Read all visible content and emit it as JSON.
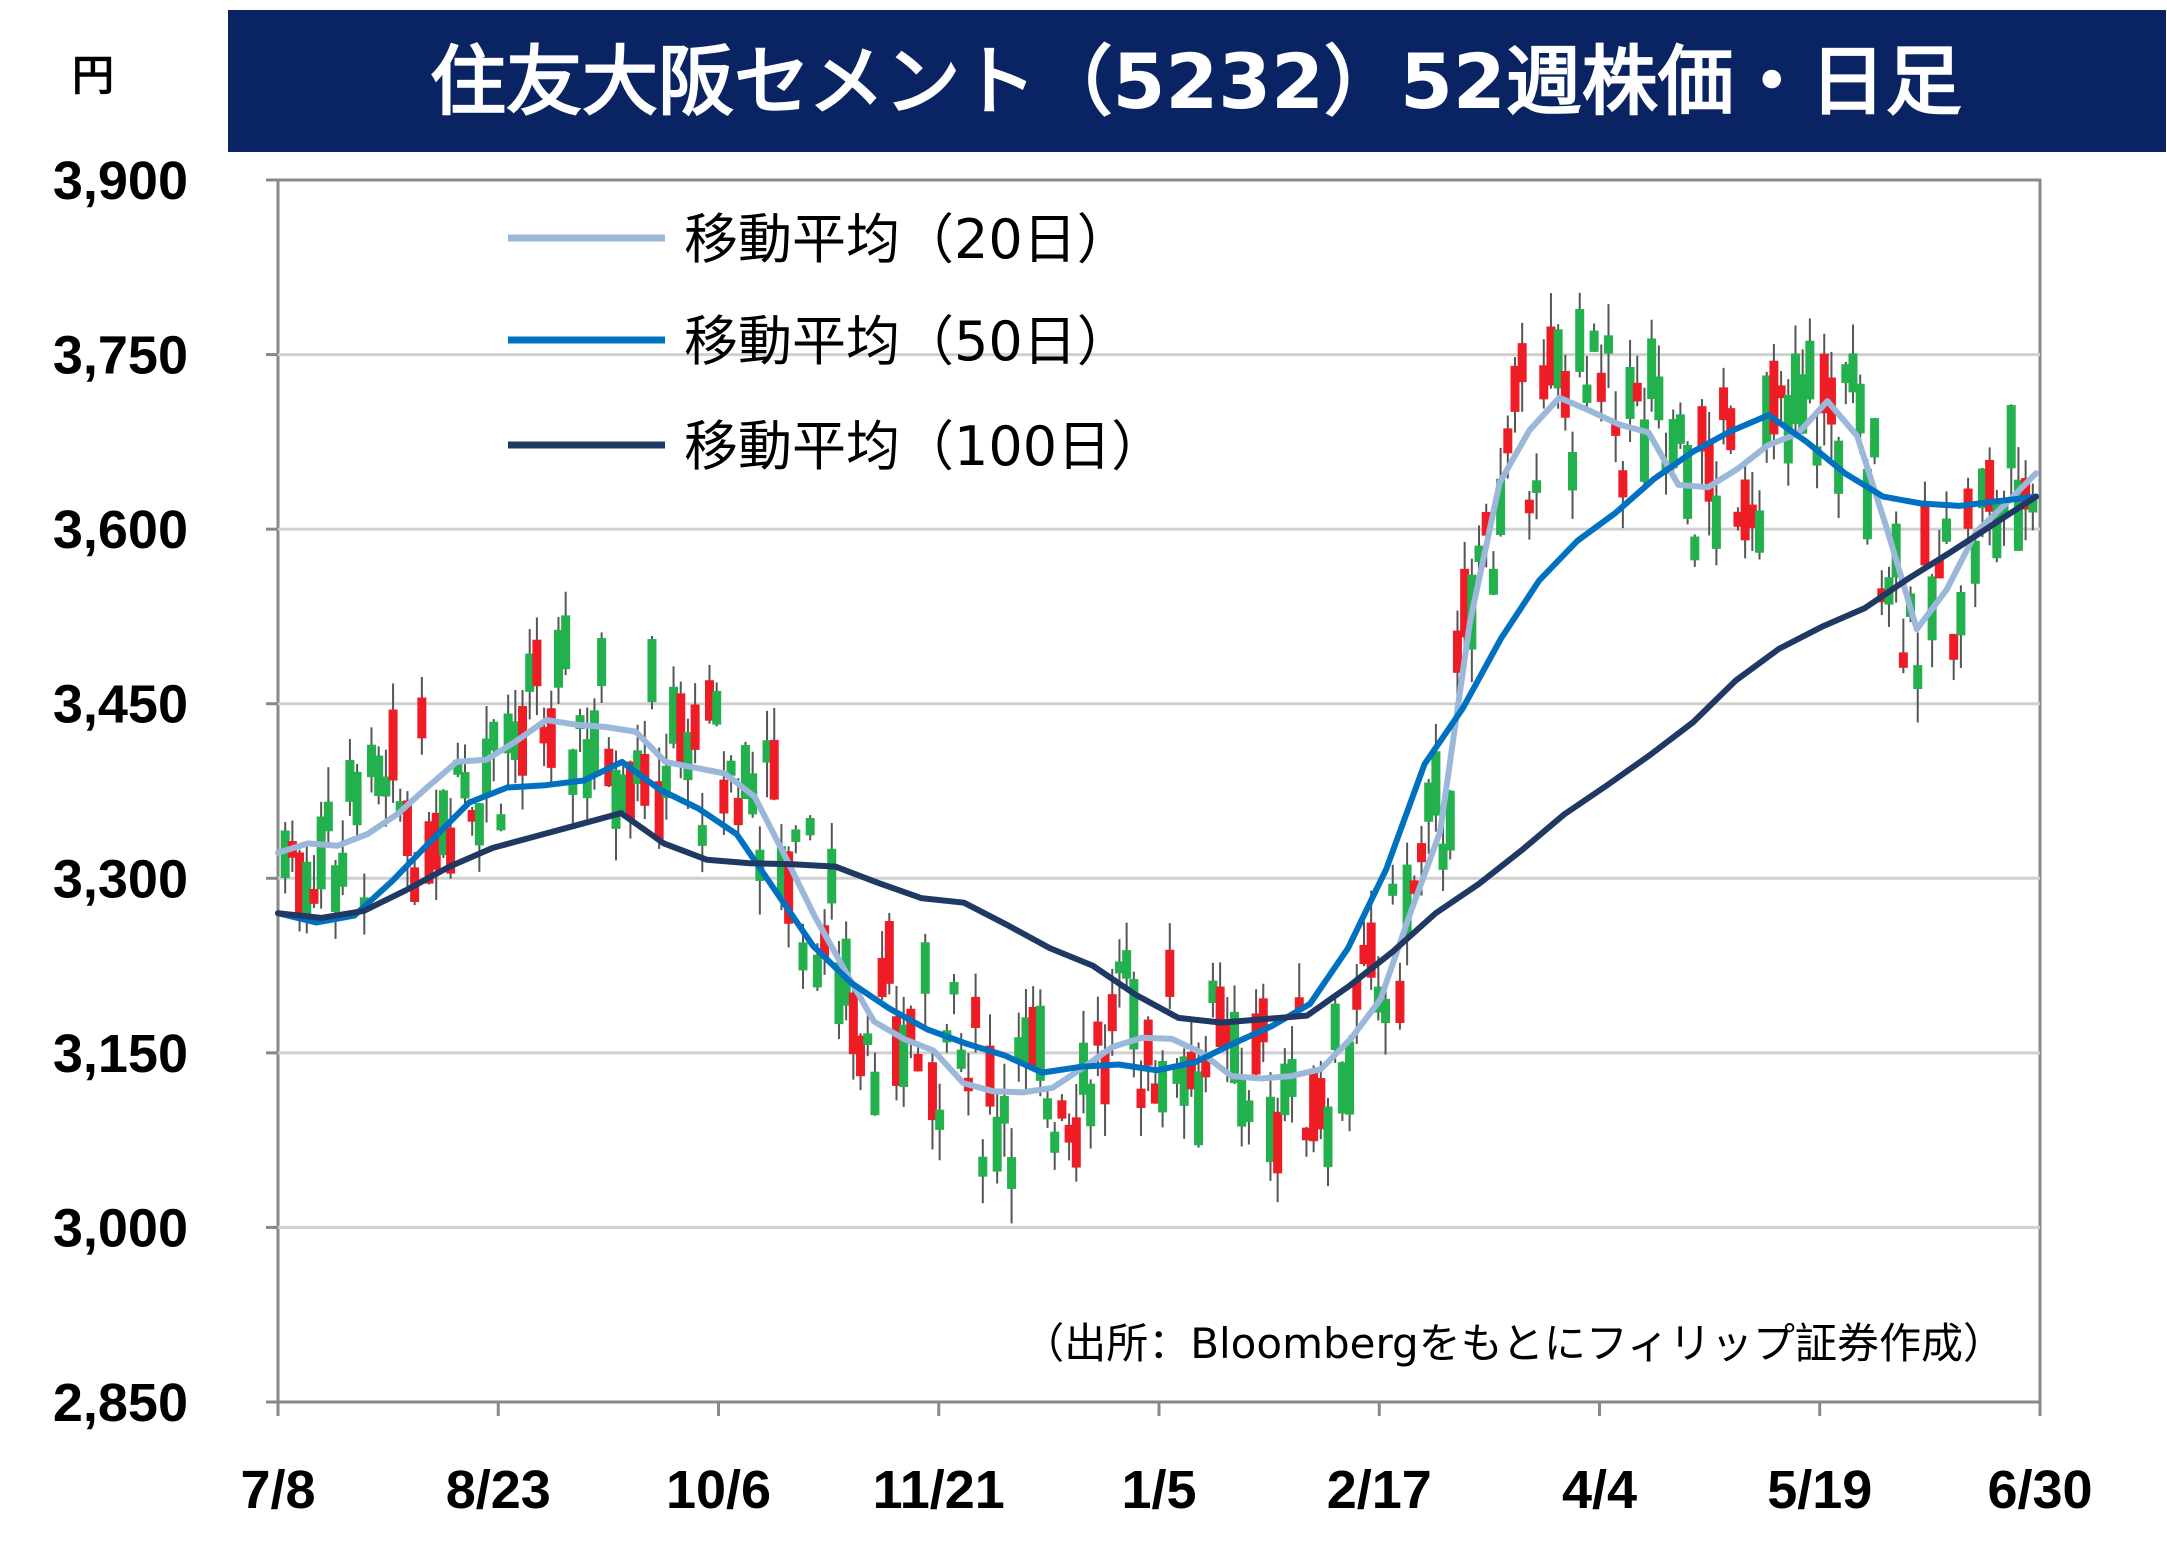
{
  "chart_data": {
    "type": "candlestick",
    "title": "住友大阪セメント（5232）52週株価・日足",
    "ylabel": "円",
    "source": "（出所：Bloombergをもとにフィリップ証券作成）",
    "ylim": [
      2850,
      3900
    ],
    "yticks": [
      2850,
      3000,
      3150,
      3300,
      3450,
      3600,
      3750,
      3900
    ],
    "ytick_labels": [
      "2,850",
      "3,000",
      "3,150",
      "3,300",
      "3,450",
      "3,600",
      "3,750",
      "3,900"
    ],
    "xticks": [
      "7/8",
      "8/23",
      "10/6",
      "11/21",
      "1/5",
      "2/17",
      "4/4",
      "5/19",
      "6/30"
    ],
    "colors": {
      "up": "#ee1c25",
      "down": "#22b14c",
      "wick": "#555555",
      "ma20": "#9bb7d9",
      "ma50": "#0070c0",
      "ma100": "#1f3864",
      "title_bg": "#0a2463",
      "grid": "#d0d0d0"
    },
    "series": [
      {
        "name": "移動平均（20日）",
        "values": [
          3322,
          3330,
          3328,
          3338,
          3355,
          3378,
          3400,
          3402,
          3418,
          3436,
          3432,
          3430,
          3426,
          3400,
          3395,
          3390,
          3370,
          3320,
          3268,
          3222,
          3177,
          3162,
          3152,
          3124,
          3117,
          3116,
          3120,
          3137,
          3155,
          3163,
          3162,
          3150,
          3130,
          3128,
          3130,
          3136,
          3162,
          3196,
          3270,
          3340,
          3520,
          3640,
          3685,
          3713,
          3702,
          3690,
          3683,
          3638,
          3636,
          3652,
          3672,
          3682,
          3710,
          3680,
          3600,
          3514,
          3548,
          3598,
          3622,
          3648
        ]
      },
      {
        "name": "移動平均（50日）",
        "values": [
          3270,
          3262,
          3268,
          3298,
          3332,
          3365,
          3378,
          3380,
          3384,
          3400,
          3376,
          3360,
          3338,
          3290,
          3242,
          3210,
          3188,
          3170,
          3158,
          3148,
          3133,
          3138,
          3140,
          3135,
          3142,
          3158,
          3173,
          3192,
          3240,
          3308,
          3398,
          3446,
          3506,
          3556,
          3590,
          3614,
          3643,
          3666,
          3684,
          3698,
          3675,
          3648,
          3628,
          3622,
          3620,
          3624,
          3628
        ]
      },
      {
        "name": "移動平均（100日）",
        "values": [
          3270,
          3266,
          3272,
          3290,
          3310,
          3326,
          3336,
          3346,
          3356,
          3330,
          3316,
          3313,
          3312,
          3310,
          3296,
          3283,
          3279,
          3260,
          3240,
          3225,
          3200,
          3180,
          3176,
          3179,
          3182,
          3208,
          3237,
          3270,
          3295,
          3324,
          3355,
          3380,
          3406,
          3434,
          3470,
          3497,
          3516,
          3532,
          3557,
          3580,
          3604,
          3628
        ]
      }
    ]
  }
}
